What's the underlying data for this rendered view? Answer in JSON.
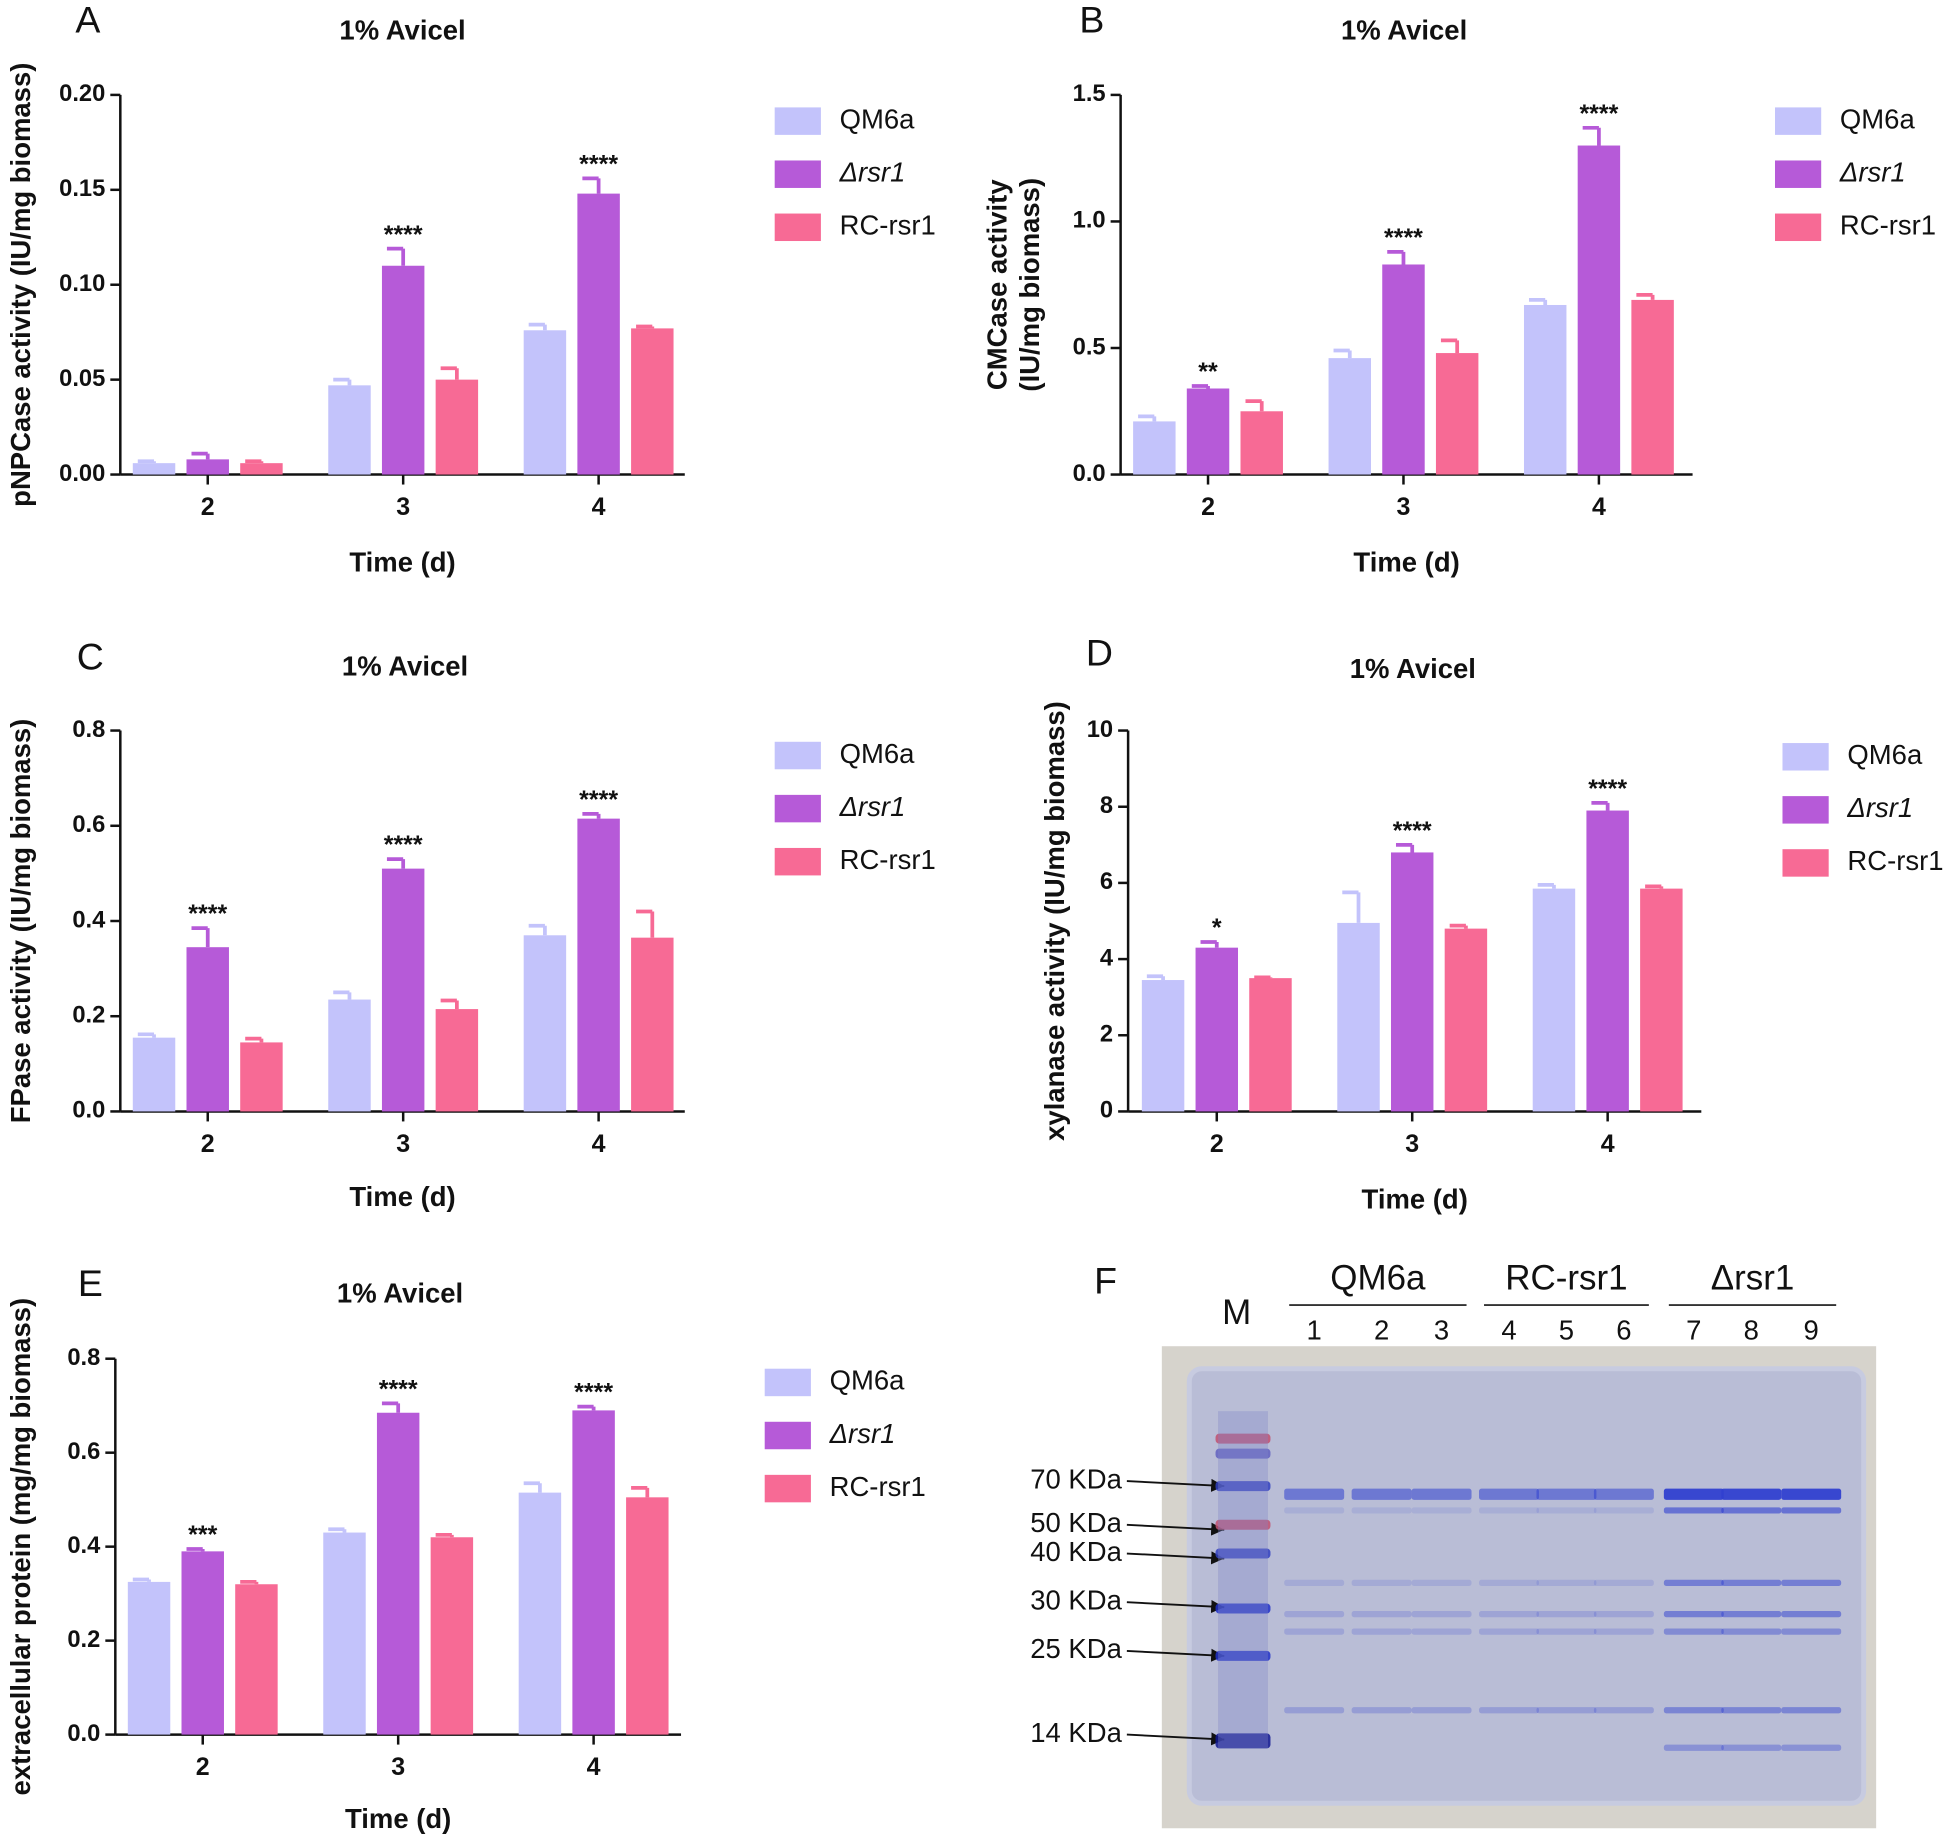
{
  "chart_data": [
    {
      "type": "bar",
      "panel": "A",
      "title": "1% Avicel",
      "xlabel": "Time (d)",
      "ylabel": "pNPCase activity (IU/mg biomass)",
      "categories": [
        "2",
        "3",
        "4"
      ],
      "ylim": [
        0,
        0.2
      ],
      "yticks": [
        {
          "value": 0,
          "label": "0.00"
        },
        {
          "value": 0.05,
          "label": "0.05"
        },
        {
          "value": 0.1,
          "label": "0.10"
        },
        {
          "value": 0.15,
          "label": "0.15"
        },
        {
          "value": 0.2,
          "label": "0.20"
        }
      ],
      "series": [
        {
          "name": "QM6a",
          "color": "#c3c3fb",
          "values": [
            0.006,
            0.047,
            0.076
          ],
          "errors": [
            0.001,
            0.003,
            0.003
          ]
        },
        {
          "name": "Δrsr1",
          "color": "#b65ad8",
          "values": [
            0.008,
            0.11,
            0.148
          ],
          "errors": [
            0.003,
            0.009,
            0.008
          ],
          "significance": [
            null,
            "****",
            "****"
          ]
        },
        {
          "name": "RC-rsr1",
          "color": "#f76a95",
          "values": [
            0.006,
            0.05,
            0.077
          ],
          "errors": [
            0.001,
            0.006,
            0.001
          ]
        }
      ]
    },
    {
      "type": "bar",
      "panel": "B",
      "title": "1% Avicel",
      "xlabel": "Time (d)",
      "ylabel": [
        "CMCase activity",
        "(IU/mg biomass)"
      ],
      "categories": [
        "2",
        "3",
        "4"
      ],
      "ylim": [
        0,
        1.5
      ],
      "yticks": [
        {
          "value": 0,
          "label": "0.0"
        },
        0.5,
        {
          "value": 1,
          "label": "1.0"
        },
        1.5
      ],
      "series": [
        {
          "name": "QM6a",
          "color": "#c3c3fb",
          "values": [
            0.21,
            0.46,
            0.67
          ],
          "errors": [
            0.02,
            0.03,
            0.02
          ]
        },
        {
          "name": "Δrsr1",
          "color": "#b65ad8",
          "values": [
            0.34,
            0.83,
            1.3
          ],
          "errors": [
            0.01,
            0.05,
            0.07
          ],
          "significance": [
            "**",
            "****",
            "****"
          ]
        },
        {
          "name": "RC-rsr1",
          "color": "#f76a95",
          "values": [
            0.25,
            0.48,
            0.69
          ],
          "errors": [
            0.04,
            0.05,
            0.02
          ]
        }
      ]
    },
    {
      "type": "bar",
      "panel": "C",
      "title": "1% Avicel",
      "xlabel": "Time (d)",
      "ylabel": "FPase activity (IU/mg biomass)",
      "categories": [
        "2",
        "3",
        "4"
      ],
      "ylim": [
        0,
        0.8
      ],
      "yticks": [
        {
          "value": 0,
          "label": "0.0"
        },
        0.2,
        0.4,
        0.6,
        0.8
      ],
      "series": [
        {
          "name": "QM6a",
          "color": "#c3c3fb",
          "values": [
            0.155,
            0.235,
            0.37
          ],
          "errors": [
            0.007,
            0.015,
            0.02
          ]
        },
        {
          "name": "Δrsr1",
          "color": "#b65ad8",
          "values": [
            0.345,
            0.51,
            0.615
          ],
          "errors": [
            0.04,
            0.02,
            0.01
          ],
          "significance": [
            "****",
            "****",
            "****"
          ]
        },
        {
          "name": "RC-rsr1",
          "color": "#f76a95",
          "values": [
            0.145,
            0.215,
            0.365
          ],
          "errors": [
            0.008,
            0.018,
            0.055
          ]
        }
      ]
    },
    {
      "type": "bar",
      "panel": "D",
      "title": "1% Avicel",
      "xlabel": "Time (d)",
      "ylabel": "xylanase activity (IU/mg biomass)",
      "categories": [
        "2",
        "3",
        "4"
      ],
      "ylim": [
        0,
        10
      ],
      "yticks": [
        0,
        2,
        4,
        6,
        8,
        10
      ],
      "series": [
        {
          "name": "QM6a",
          "color": "#c3c3fb",
          "values": [
            3.45,
            4.95,
            5.85
          ],
          "errors": [
            0.1,
            0.8,
            0.1
          ]
        },
        {
          "name": "Δrsr1",
          "color": "#b65ad8",
          "values": [
            4.3,
            6.8,
            7.9
          ],
          "errors": [
            0.15,
            0.2,
            0.2
          ],
          "significance": [
            "*",
            "****",
            "****"
          ]
        },
        {
          "name": "RC-rsr1",
          "color": "#f76a95",
          "values": [
            3.5,
            4.8,
            5.85
          ],
          "errors": [
            0.02,
            0.08,
            0.06
          ]
        }
      ]
    },
    {
      "type": "bar",
      "panel": "E",
      "title": "1% Avicel",
      "xlabel": "Time (d)",
      "ylabel": "extracellular protein (mg/mg biomass)",
      "categories": [
        "2",
        "3",
        "4"
      ],
      "ylim": [
        0,
        0.8
      ],
      "yticks": [
        {
          "value": 0,
          "label": "0.0"
        },
        0.2,
        0.4,
        0.6,
        0.8
      ],
      "series": [
        {
          "name": "QM6a",
          "color": "#c3c3fb",
          "values": [
            0.325,
            0.43,
            0.515
          ],
          "errors": [
            0.005,
            0.007,
            0.02
          ]
        },
        {
          "name": "Δrsr1",
          "color": "#b65ad8",
          "values": [
            0.39,
            0.685,
            0.69
          ],
          "errors": [
            0.005,
            0.02,
            0.008
          ],
          "significance": [
            "***",
            "****",
            "****"
          ]
        },
        {
          "name": "RC-rsr1",
          "color": "#f76a95",
          "values": [
            0.32,
            0.42,
            0.505
          ],
          "errors": [
            0.005,
            0.005,
            0.02
          ]
        }
      ]
    }
  ],
  "gel": {
    "panel": "F",
    "marker_lane": "M",
    "groups": [
      {
        "name": "QM6a",
        "lanes": [
          "1",
          "2",
          "3"
        ]
      },
      {
        "name": "RC-rsr1",
        "lanes": [
          "4",
          "5",
          "6"
        ]
      },
      {
        "name": "Δrsr1",
        "lanes": [
          "7",
          "8",
          "9"
        ]
      }
    ],
    "markers": [
      "70 KDa",
      "50 KDa",
      "40 KDa",
      "30 KDa",
      "25 KDa",
      "14 KDa"
    ]
  }
}
